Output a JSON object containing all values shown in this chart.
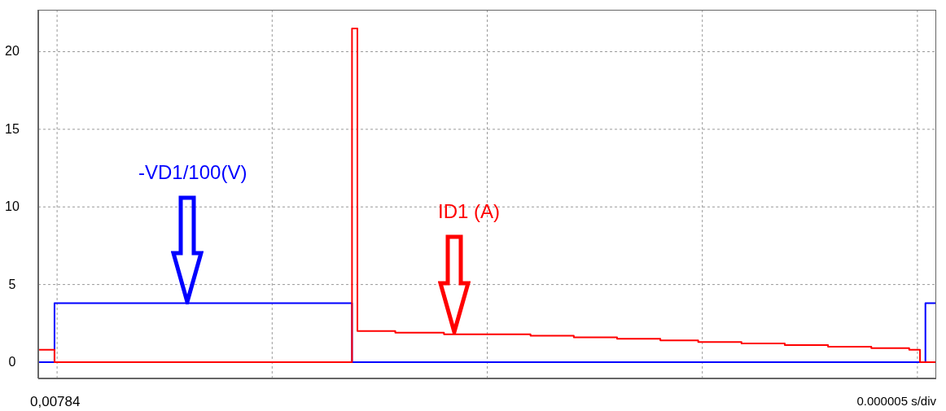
{
  "chart_data": {
    "type": "step",
    "ylim": [
      -1.05,
      22.7
    ],
    "yticks": [
      0,
      5,
      10,
      15,
      20
    ],
    "grid": true,
    "legend": false,
    "tick_labels": "y",
    "marker": "none",
    "line_style": "solid",
    "annotations": [
      "0,00784",
      "0.000005 s/div"
    ],
    "categories": [
      null,
      null,
      null,
      null,
      null,
      null,
      null,
      null,
      null,
      null,
      null,
      null,
      null,
      null,
      null,
      null,
      null,
      null,
      null,
      null,
      null,
      null,
      null,
      null,
      null,
      null,
      null,
      null,
      null,
      null,
      null,
      null,
      null,
      null,
      null,
      null,
      null,
      null,
      null,
      null,
      null,
      null,
      null,
      null,
      null,
      null,
      null,
      null,
      null,
      null,
      null,
      null,
      null,
      null,
      null,
      null,
      null,
      null,
      null,
      null,
      null,
      null,
      null,
      null,
      null,
      null,
      null,
      null,
      null,
      null,
      null,
      null,
      null,
      null,
      null,
      null,
      null,
      null,
      null,
      null,
      null,
      null,
      null,
      null,
      null,
      null,
      null,
      null,
      null,
      null,
      null,
      null,
      null,
      null,
      null,
      null,
      null,
      null,
      null,
      null,
      null,
      null,
      null,
      null,
      null,
      null,
      null,
      null,
      null,
      null,
      null,
      null,
      null,
      null,
      null,
      null,
      null,
      null,
      null,
      null,
      null,
      null,
      null,
      null,
      null,
      null,
      null,
      null,
      null,
      null,
      null,
      null,
      null,
      null,
      null,
      null,
      null,
      null,
      null,
      null,
      null,
      null,
      null,
      null,
      null,
      null,
      null,
      null,
      null,
      null,
      null,
      null,
      null,
      null,
      null,
      null,
      null,
      null,
      null,
      null,
      null,
      null,
      null,
      null,
      null,
      null,
      null
    ],
    "series": [
      {
        "name": "-VD1/100(V)",
        "color": "#0000ff",
        "values": [
          0,
          0,
          0,
          3.8,
          3.8,
          3.8,
          3.8,
          3.8,
          3.8,
          3.8,
          3.8,
          3.8,
          3.8,
          3.8,
          3.8,
          3.8,
          3.8,
          3.8,
          3.8,
          3.8,
          3.8,
          3.8,
          3.8,
          3.8,
          3.8,
          3.8,
          3.8,
          3.8,
          3.8,
          3.8,
          3.8,
          3.8,
          3.8,
          3.8,
          3.8,
          3.8,
          3.8,
          3.8,
          3.8,
          3.8,
          3.8,
          3.8,
          3.8,
          3.8,
          3.8,
          3.8,
          3.8,
          3.8,
          3.8,
          3.8,
          3.8,
          3.8,
          3.8,
          3.8,
          3.8,
          3.8,
          3.8,
          3.8,
          0,
          0,
          0,
          0,
          0,
          0,
          0,
          0,
          0,
          0,
          0,
          0,
          0,
          0,
          0,
          0,
          0,
          0,
          0,
          0,
          0,
          0,
          0,
          0,
          0,
          0,
          0,
          0,
          0,
          0,
          0,
          0,
          0,
          0,
          0,
          0,
          0,
          0,
          0,
          0,
          0,
          0,
          0,
          0,
          0,
          0,
          0,
          0,
          0,
          0,
          0,
          0,
          0,
          0,
          0,
          0,
          0,
          0,
          0,
          0,
          0,
          0,
          0,
          0,
          0,
          0,
          0,
          0,
          0,
          0,
          0,
          0,
          0,
          0,
          0,
          0,
          0,
          0,
          0,
          0,
          0,
          0,
          0,
          0,
          0,
          0,
          0,
          0,
          0,
          0,
          0,
          0,
          0,
          0,
          0,
          0,
          0,
          0,
          0,
          0,
          0,
          0,
          0,
          0,
          0,
          0,
          3.8,
          3.8,
          3.8
        ]
      },
      {
        "name": "ID1 (A)",
        "color": "#ff0000",
        "values": [
          0.8,
          0.8,
          0.8,
          0,
          0,
          0,
          0,
          0,
          0,
          0,
          0,
          0,
          0,
          0,
          0,
          0,
          0,
          0,
          0,
          0,
          0,
          0,
          0,
          0,
          0,
          0,
          0,
          0,
          0,
          0,
          0,
          0,
          0,
          0,
          0,
          0,
          0,
          0,
          0,
          0,
          0,
          0,
          0,
          0,
          0,
          0,
          0,
          0,
          0,
          0,
          0,
          0,
          0,
          0,
          0,
          0,
          0,
          0,
          21.5,
          2,
          2,
          2,
          2,
          2,
          2,
          2,
          1.9,
          1.9,
          1.9,
          1.9,
          1.9,
          1.9,
          1.9,
          1.9,
          1.9,
          1.8,
          1.8,
          1.8,
          1.8,
          1.8,
          1.8,
          1.8,
          1.8,
          1.8,
          1.8,
          1.8,
          1.8,
          1.8,
          1.8,
          1.8,
          1.8,
          1.7,
          1.7,
          1.7,
          1.7,
          1.7,
          1.7,
          1.7,
          1.7,
          1.6,
          1.6,
          1.6,
          1.6,
          1.6,
          1.6,
          1.6,
          1.6,
          1.5,
          1.5,
          1.5,
          1.5,
          1.5,
          1.5,
          1.5,
          1.5,
          1.4,
          1.4,
          1.4,
          1.4,
          1.4,
          1.4,
          1.4,
          1.3,
          1.3,
          1.3,
          1.3,
          1.3,
          1.3,
          1.3,
          1.3,
          1.2,
          1.2,
          1.2,
          1.2,
          1.2,
          1.2,
          1.2,
          1.2,
          1.1,
          1.1,
          1.1,
          1.1,
          1.1,
          1.1,
          1.1,
          1.1,
          1,
          1,
          1,
          1,
          1,
          1,
          1,
          1,
          0.9,
          0.9,
          0.9,
          0.9,
          0.9,
          0.9,
          0.9,
          0.8,
          0.8,
          0,
          0,
          0,
          0
        ]
      }
    ]
  }
}
